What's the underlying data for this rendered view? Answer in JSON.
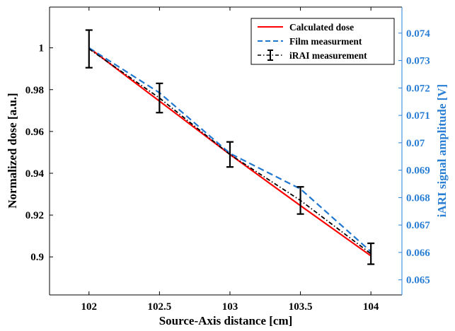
{
  "chart_data": {
    "type": "line",
    "xlabel": "Source-Axis distance [cm]",
    "ylabel": "Normalized dose [a.u.]",
    "y2label": "iARI signal amplitude [V]",
    "xlim": [
      101.72,
      104.22
    ],
    "ylim": [
      0.8818,
      1.0195
    ],
    "y2lim": [
      0.06445,
      0.07495
    ],
    "xticks": [
      "102",
      "102.5",
      "103",
      "103.5",
      "104"
    ],
    "yticks": [
      "0.9",
      "0.92",
      "0.94",
      "0.96",
      "0.98",
      "1"
    ],
    "y2ticks": [
      "0.065",
      "0.066",
      "0.067",
      "0.068",
      "0.069",
      "0.07",
      "0.071",
      "0.072",
      "0.073",
      "0.074"
    ],
    "legend_position": "top-right",
    "colors": {
      "right_axis": "#2a7fd4",
      "calculated": "#ff0000",
      "film": "#1f77d0",
      "irai": "#000000"
    },
    "series": [
      {
        "name": "Calculated dose",
        "style": "solid",
        "color": "#ff0000",
        "x": [
          102,
          102.5,
          103,
          103.5,
          104
        ],
        "y": [
          1.0,
          0.9745,
          0.949,
          0.9245,
          0.9005
        ]
      },
      {
        "name": "Film measurment",
        "style": "dashed",
        "color": "#1f77d0",
        "x": [
          102,
          102.5,
          103,
          103.5,
          104
        ],
        "y": [
          1.0,
          0.9785,
          0.9495,
          0.9325,
          0.9025
        ]
      },
      {
        "name": "iRAI measurement",
        "style": "dashdot",
        "color": "#000000",
        "x": [
          102,
          102.5,
          103,
          103.5,
          104
        ],
        "y": [
          0.9995,
          0.976,
          0.949,
          0.927,
          0.9015
        ],
        "error": [
          0.009,
          0.007,
          0.006,
          0.0065,
          0.005
        ]
      }
    ]
  }
}
